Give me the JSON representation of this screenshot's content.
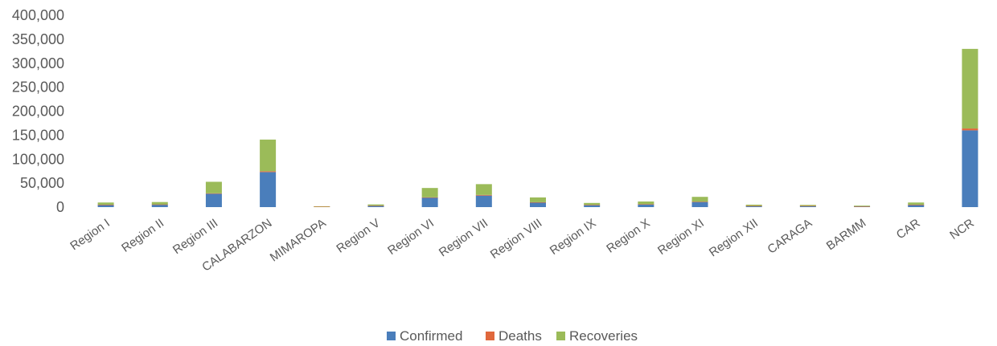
{
  "chart_data": {
    "type": "bar",
    "stacked": true,
    "categories": [
      "Region I",
      "Region II",
      "Region III",
      "CALABARZON",
      "MIMAROPA",
      "Region V",
      "Region VI",
      "Region VII",
      "Region VIII",
      "Region IX",
      "Region X",
      "Region XI",
      "Region XII",
      "CARAGA",
      "BARMM",
      "CAR",
      "NCR"
    ],
    "series": [
      {
        "name": "Confirmed",
        "color": "#4A7EBB",
        "values": [
          5000,
          5500,
          28000,
          73000,
          1000,
          3000,
          20000,
          24000,
          10000,
          4500,
          6000,
          11000,
          2500,
          2500,
          1500,
          5000,
          160000
        ]
      },
      {
        "name": "Deaths",
        "color": "#E0683C",
        "values": [
          100,
          100,
          800,
          1800,
          20,
          100,
          400,
          1400,
          200,
          200,
          200,
          400,
          100,
          100,
          70,
          100,
          3900
        ]
      },
      {
        "name": "Recoveries",
        "color": "#9BBB59",
        "values": [
          4500,
          5000,
          24000,
          66000,
          800,
          2500,
          19500,
          22500,
          10000,
          4000,
          5500,
          10000,
          2500,
          2000,
          1500,
          4500,
          166000
        ]
      }
    ],
    "yticks": [
      "0",
      "50,000",
      "100,000",
      "150,000",
      "200,000",
      "250,000",
      "300,000",
      "350,000",
      "400,000"
    ],
    "ylim": [
      0,
      400000
    ],
    "grid": false,
    "legend_position": "bottom"
  }
}
